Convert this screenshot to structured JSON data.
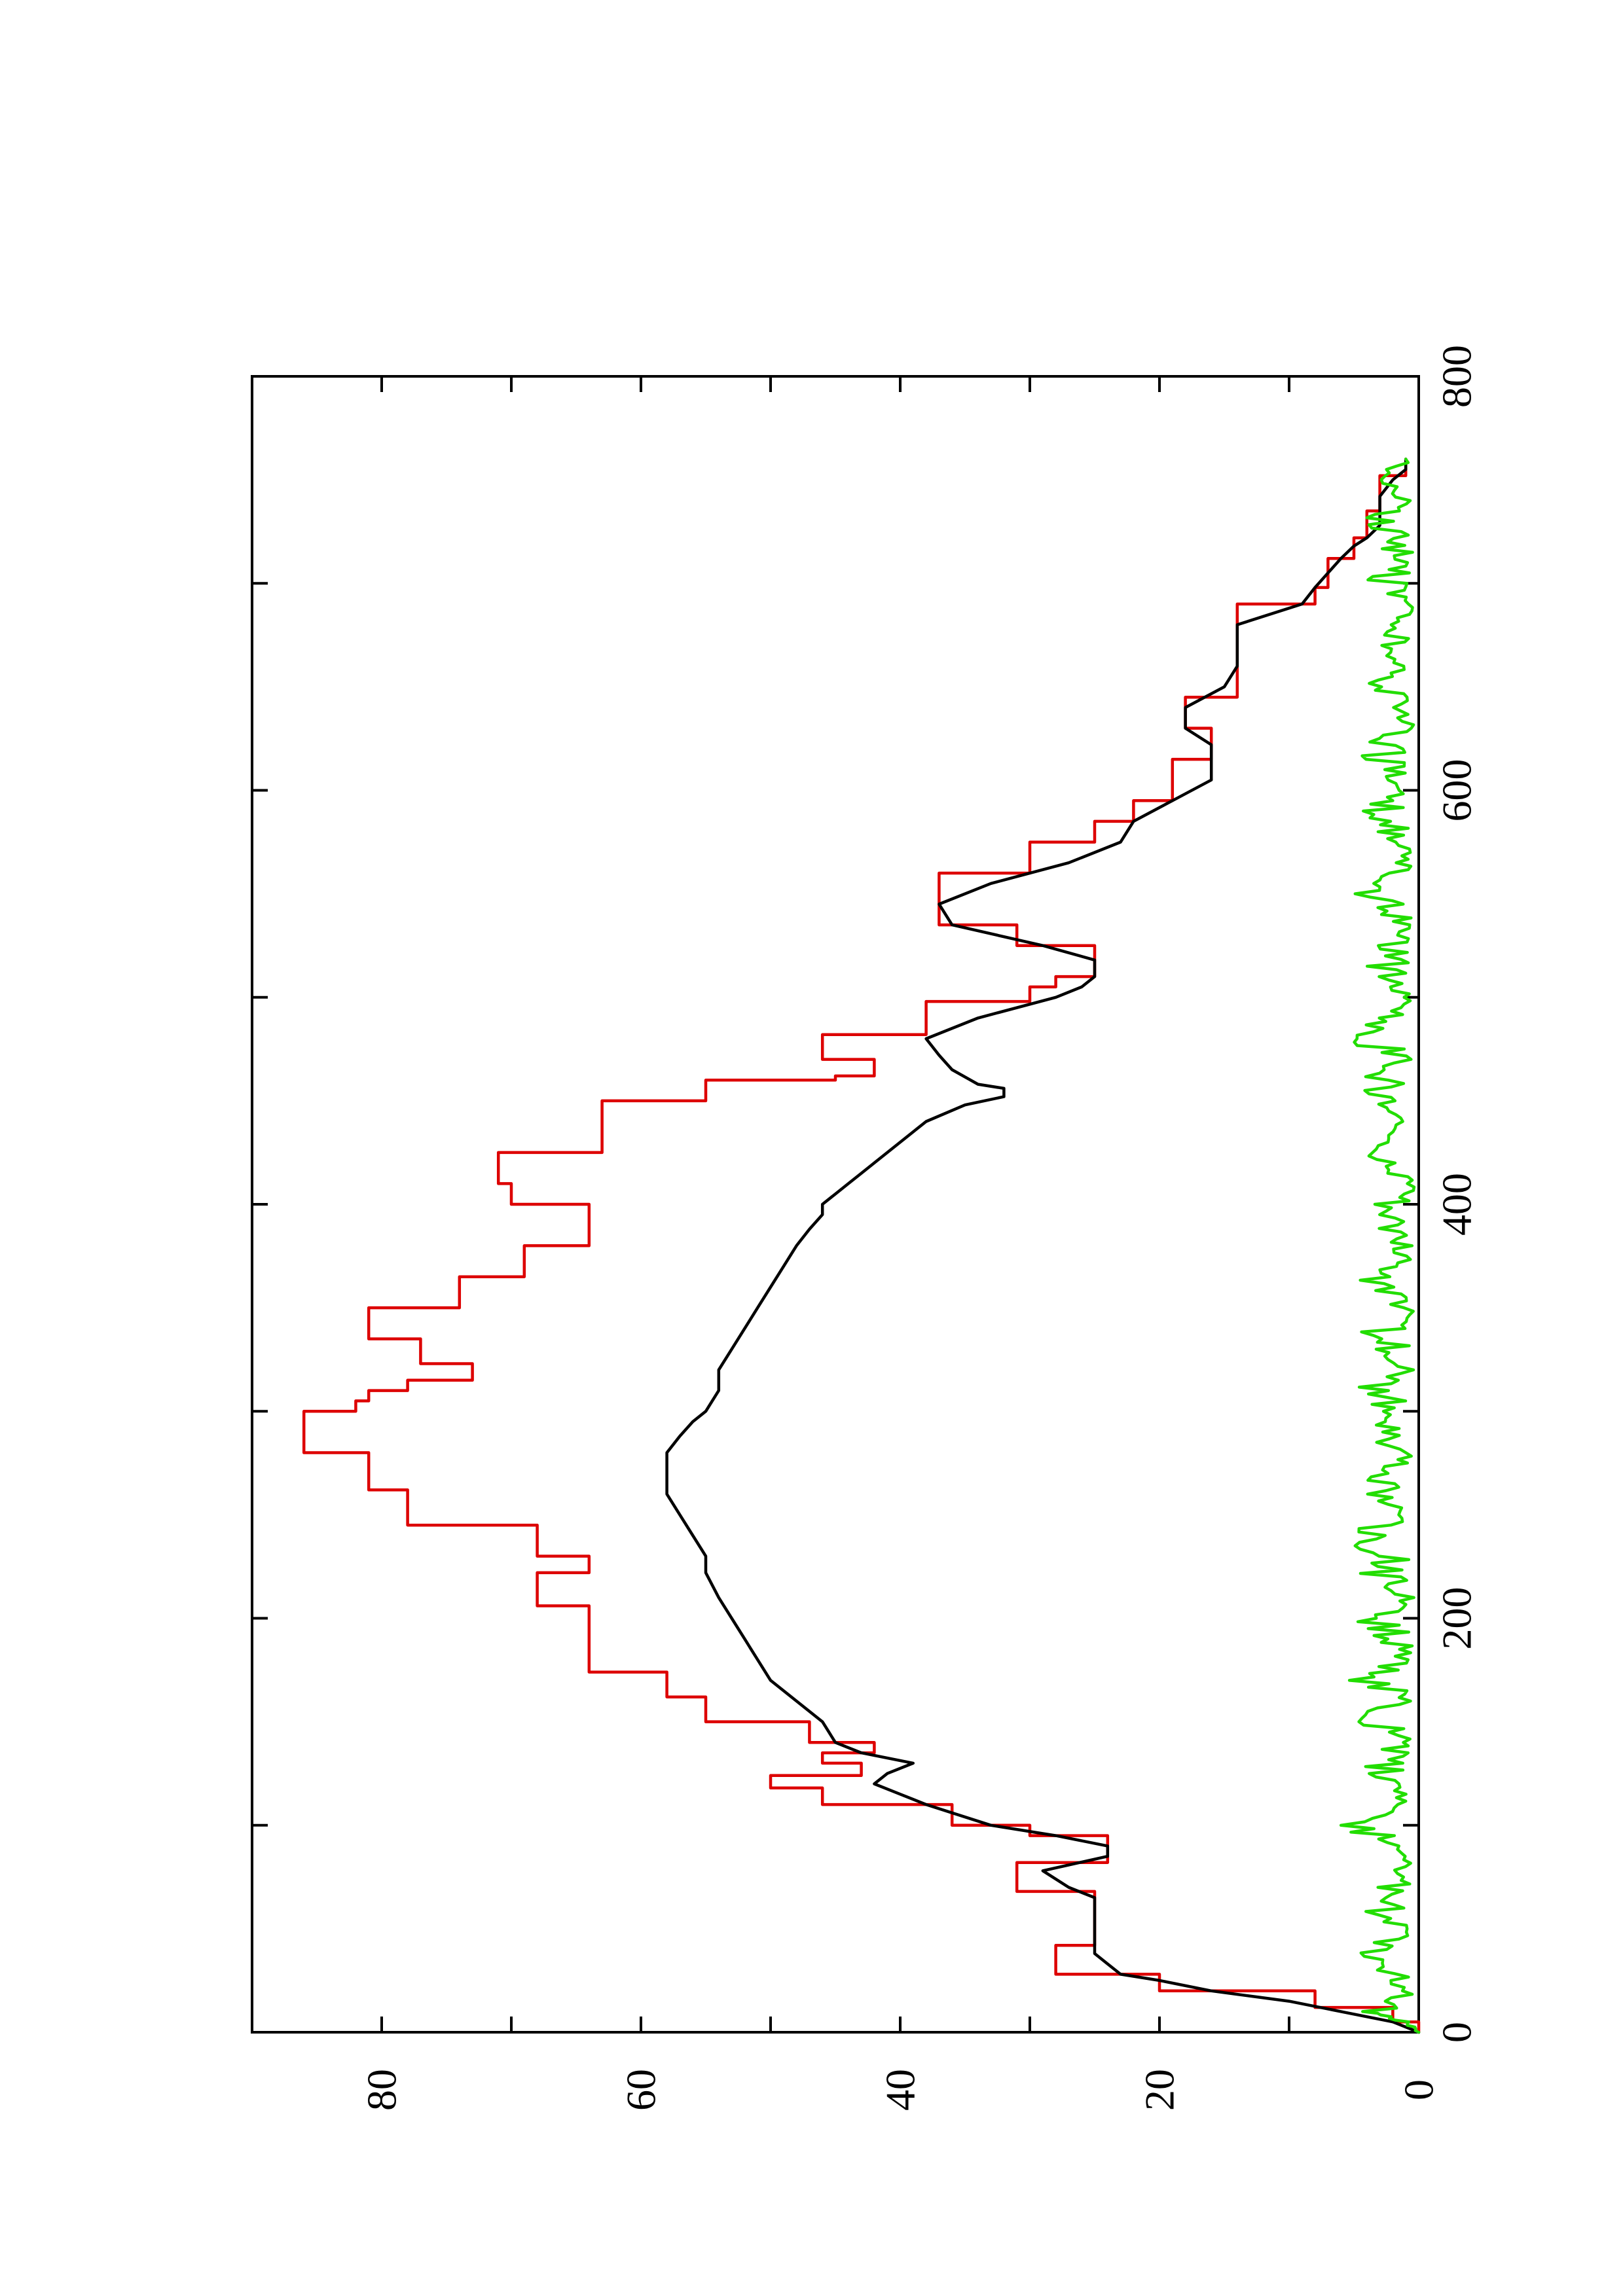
{
  "chart_data": {
    "type": "line",
    "orientation": "rotated-90-ccw",
    "title": "",
    "xlabel": "",
    "ylabel": "",
    "xlim": [
      0,
      800
    ],
    "ylim": [
      0,
      90
    ],
    "grid": false,
    "legend": "none",
    "x_ticks": [
      {
        "value": 0,
        "label": "0"
      },
      {
        "value": 200,
        "label": "200"
      },
      {
        "value": 400,
        "label": "400"
      },
      {
        "value": 600,
        "label": "600"
      },
      {
        "value": 800,
        "label": "800"
      }
    ],
    "x_minor_ticks": [
      100,
      300,
      500,
      700
    ],
    "y_ticks": [
      {
        "value": 0,
        "label": "0"
      },
      {
        "value": 20,
        "label": "20"
      },
      {
        "value": 40,
        "label": "40"
      },
      {
        "value": 60,
        "label": "60"
      },
      {
        "value": 80,
        "label": "80"
      }
    ],
    "y_minor_ticks": [
      10,
      30,
      50,
      70
    ],
    "series": [
      {
        "color": "#dd0000",
        "step": true,
        "points": [
          [
            0,
            0
          ],
          [
            5,
            2
          ],
          [
            12,
            8
          ],
          [
            20,
            20
          ],
          [
            28,
            28
          ],
          [
            40,
            28
          ],
          [
            42,
            25
          ],
          [
            65,
            25
          ],
          [
            68,
            31
          ],
          [
            80,
            31
          ],
          [
            82,
            24
          ],
          [
            90,
            24
          ],
          [
            95,
            30
          ],
          [
            100,
            36
          ],
          [
            110,
            46
          ],
          [
            118,
            50
          ],
          [
            124,
            43
          ],
          [
            130,
            46
          ],
          [
            135,
            42
          ],
          [
            140,
            47
          ],
          [
            150,
            55
          ],
          [
            160,
            55
          ],
          [
            162,
            58
          ],
          [
            172,
            58
          ],
          [
            174,
            64
          ],
          [
            205,
            64
          ],
          [
            206,
            68
          ],
          [
            220,
            68
          ],
          [
            222,
            64
          ],
          [
            228,
            64
          ],
          [
            230,
            68
          ],
          [
            245,
            78
          ],
          [
            260,
            78
          ],
          [
            262,
            81
          ],
          [
            275,
            81
          ],
          [
            280,
            86
          ],
          [
            298,
            86
          ],
          [
            300,
            82
          ],
          [
            305,
            81
          ],
          [
            310,
            78
          ],
          [
            315,
            73
          ],
          [
            322,
            73
          ],
          [
            323,
            77
          ],
          [
            334,
            77
          ],
          [
            335,
            81
          ],
          [
            345,
            81
          ],
          [
            350,
            74
          ],
          [
            362,
            74
          ],
          [
            365,
            69
          ],
          [
            378,
            69
          ],
          [
            380,
            64
          ],
          [
            397,
            64
          ],
          [
            400,
            70
          ],
          [
            408,
            70
          ],
          [
            410,
            71
          ],
          [
            420,
            71
          ],
          [
            425,
            63
          ],
          [
            450,
            55
          ],
          [
            460,
            45
          ],
          [
            462,
            42
          ],
          [
            468,
            42
          ],
          [
            470,
            46
          ],
          [
            478,
            46
          ],
          [
            482,
            38
          ],
          [
            498,
            30
          ],
          [
            505,
            28
          ],
          [
            510,
            25
          ],
          [
            515,
            25
          ],
          [
            525,
            31
          ],
          [
            535,
            37
          ],
          [
            545,
            37
          ],
          [
            560,
            30
          ],
          [
            575,
            25
          ],
          [
            585,
            22
          ],
          [
            595,
            19
          ],
          [
            615,
            16
          ],
          [
            625,
            16
          ],
          [
            630,
            18
          ],
          [
            640,
            18
          ],
          [
            645,
            14
          ],
          [
            675,
            14
          ],
          [
            690,
            8
          ],
          [
            697,
            8
          ],
          [
            698,
            7
          ],
          [
            705,
            7
          ],
          [
            712,
            5
          ],
          [
            718,
            5
          ],
          [
            722,
            4
          ],
          [
            733,
            4
          ],
          [
            735,
            3
          ],
          [
            750,
            3
          ],
          [
            752,
            1
          ],
          [
            760,
            1
          ]
        ]
      },
      {
        "color": "#000000",
        "step": false,
        "points": [
          [
            0,
            0
          ],
          [
            5,
            2
          ],
          [
            10,
            6
          ],
          [
            15,
            10
          ],
          [
            20,
            16
          ],
          [
            25,
            20
          ],
          [
            28,
            23
          ],
          [
            33,
            24
          ],
          [
            38,
            25
          ],
          [
            45,
            25
          ],
          [
            55,
            25
          ],
          [
            65,
            25
          ],
          [
            70,
            27
          ],
          [
            78,
            29
          ],
          [
            85,
            24
          ],
          [
            90,
            24
          ],
          [
            95,
            28
          ],
          [
            100,
            33
          ],
          [
            110,
            38
          ],
          [
            115,
            40
          ],
          [
            120,
            42
          ],
          [
            125,
            41
          ],
          [
            130,
            39
          ],
          [
            135,
            43
          ],
          [
            140,
            45
          ],
          [
            150,
            46
          ],
          [
            160,
            48
          ],
          [
            170,
            50
          ],
          [
            180,
            51
          ],
          [
            190,
            52
          ],
          [
            200,
            53
          ],
          [
            210,
            54
          ],
          [
            222,
            55
          ],
          [
            230,
            55
          ],
          [
            240,
            56
          ],
          [
            250,
            57
          ],
          [
            260,
            58
          ],
          [
            270,
            58
          ],
          [
            280,
            58
          ],
          [
            288,
            57
          ],
          [
            295,
            56
          ],
          [
            300,
            55
          ],
          [
            310,
            54
          ],
          [
            320,
            54
          ],
          [
            330,
            53
          ],
          [
            340,
            52
          ],
          [
            350,
            51
          ],
          [
            360,
            50
          ],
          [
            370,
            49
          ],
          [
            380,
            48
          ],
          [
            388,
            47
          ],
          [
            395,
            46
          ],
          [
            400,
            46
          ],
          [
            405,
            45
          ],
          [
            410,
            44
          ],
          [
            415,
            43
          ],
          [
            420,
            42
          ],
          [
            430,
            40
          ],
          [
            440,
            38
          ],
          [
            448,
            35
          ],
          [
            452,
            32
          ],
          [
            456,
            32
          ],
          [
            458,
            34
          ],
          [
            465,
            36
          ],
          [
            472,
            37
          ],
          [
            480,
            38
          ],
          [
            490,
            34
          ],
          [
            500,
            28
          ],
          [
            505,
            26
          ],
          [
            510,
            25
          ],
          [
            518,
            25
          ],
          [
            525,
            29
          ],
          [
            535,
            36
          ],
          [
            545,
            37
          ],
          [
            555,
            33
          ],
          [
            565,
            27
          ],
          [
            575,
            23
          ],
          [
            585,
            22
          ],
          [
            595,
            19
          ],
          [
            605,
            16
          ],
          [
            615,
            16
          ],
          [
            622,
            16
          ],
          [
            630,
            18
          ],
          [
            640,
            18
          ],
          [
            650,
            15
          ],
          [
            660,
            14
          ],
          [
            670,
            14
          ],
          [
            680,
            14
          ],
          [
            690,
            9
          ],
          [
            698,
            8
          ],
          [
            705,
            7
          ],
          [
            712,
            6
          ],
          [
            718,
            5
          ],
          [
            722,
            4
          ],
          [
            728,
            3
          ],
          [
            735,
            3
          ],
          [
            742,
            3
          ],
          [
            750,
            2
          ],
          [
            755,
            1
          ],
          [
            760,
            1
          ]
        ]
      },
      {
        "color": "#22dd00",
        "step": false,
        "noise": true,
        "amplitude_max": 6,
        "points": [
          [
            0,
            0
          ],
          [
            5,
            1
          ],
          [
            10,
            3
          ],
          [
            20,
            1
          ],
          [
            30,
            2
          ],
          [
            40,
            3
          ],
          [
            50,
            1
          ],
          [
            60,
            3
          ],
          [
            70,
            2
          ],
          [
            80,
            1
          ],
          [
            90,
            2
          ],
          [
            100,
            4
          ],
          [
            110,
            1
          ],
          [
            120,
            2
          ],
          [
            130,
            3
          ],
          [
            140,
            1
          ],
          [
            150,
            3
          ],
          [
            160,
            2
          ],
          [
            170,
            4
          ],
          [
            180,
            1
          ],
          [
            190,
            2
          ],
          [
            200,
            3
          ],
          [
            210,
            1
          ],
          [
            220,
            3
          ],
          [
            230,
            2
          ],
          [
            240,
            4
          ],
          [
            250,
            1
          ],
          [
            260,
            3
          ],
          [
            270,
            2
          ],
          [
            280,
            1
          ],
          [
            290,
            3
          ],
          [
            300,
            2
          ],
          [
            310,
            4
          ],
          [
            320,
            1
          ],
          [
            330,
            2
          ],
          [
            340,
            3
          ],
          [
            350,
            1
          ],
          [
            360,
            3
          ],
          [
            370,
            2
          ],
          [
            380,
            1
          ],
          [
            390,
            3
          ],
          [
            400,
            2
          ],
          [
            410,
            1
          ],
          [
            420,
            2
          ],
          [
            430,
            3
          ],
          [
            440,
            1
          ],
          [
            450,
            2
          ],
          [
            460,
            3
          ],
          [
            470,
            1
          ],
          [
            480,
            4
          ],
          [
            490,
            2
          ],
          [
            500,
            1
          ],
          [
            510,
            2
          ],
          [
            520,
            3
          ],
          [
            530,
            1
          ],
          [
            540,
            2
          ],
          [
            550,
            3
          ],
          [
            560,
            2
          ],
          [
            570,
            1
          ],
          [
            580,
            2
          ],
          [
            590,
            3
          ],
          [
            600,
            1
          ],
          [
            610,
            2
          ],
          [
            620,
            3
          ],
          [
            630,
            1
          ],
          [
            640,
            2
          ],
          [
            650,
            3
          ],
          [
            660,
            1
          ],
          [
            670,
            2
          ],
          [
            680,
            2
          ],
          [
            690,
            1
          ],
          [
            700,
            3
          ],
          [
            710,
            1
          ],
          [
            720,
            2
          ],
          [
            730,
            3
          ],
          [
            740,
            1
          ],
          [
            750,
            2
          ],
          [
            760,
            1
          ]
        ]
      }
    ]
  }
}
